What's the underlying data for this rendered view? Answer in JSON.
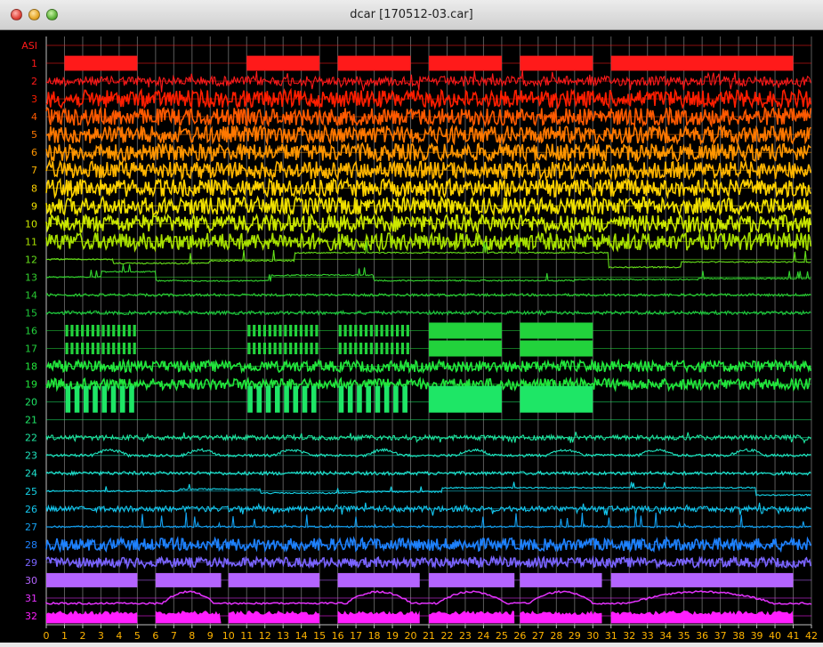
{
  "window": {
    "title": "dcar [170512-03.car]"
  },
  "chart_data": {
    "type": "line",
    "title": "",
    "xlabel": "",
    "ylabel": "",
    "xlim": [
      0,
      42
    ],
    "x_ticks": [
      "0",
      "1",
      "2",
      "3",
      "4",
      "5",
      "6",
      "7",
      "8",
      "9",
      "10",
      "11",
      "12",
      "13",
      "14",
      "15",
      "16",
      "17",
      "18",
      "19",
      "20",
      "21",
      "22",
      "23",
      "24",
      "25",
      "26",
      "27",
      "28",
      "29",
      "30",
      "31",
      "32",
      "33",
      "34",
      "35",
      "36",
      "37",
      "38",
      "39",
      "40",
      "41",
      "42"
    ],
    "grid": true,
    "background": "#000000",
    "grid_color": "#5a5a5a",
    "axis_color": "#c0c0c0",
    "channels": [
      {
        "label": "ASI",
        "color": "#ff1a1a",
        "kind": "none"
      },
      {
        "label": "1",
        "color": "#ff1a1a",
        "kind": "blocks",
        "segments": [
          [
            1,
            5
          ],
          [
            11,
            15
          ],
          [
            16,
            20
          ],
          [
            21,
            25
          ],
          [
            26,
            30
          ],
          [
            31,
            41
          ]
        ]
      },
      {
        "label": "2",
        "color": "#ff1a1a",
        "kind": "noisy",
        "amp": 0.6
      },
      {
        "label": "3",
        "color": "#ff1e00",
        "kind": "dense",
        "amp": 0.7
      },
      {
        "label": "4",
        "color": "#ff5a00",
        "kind": "dense",
        "amp": 0.7
      },
      {
        "label": "5",
        "color": "#ff7800",
        "kind": "dense",
        "amp": 0.7
      },
      {
        "label": "6",
        "color": "#ff9600",
        "kind": "dense",
        "amp": 0.7
      },
      {
        "label": "7",
        "color": "#ffb400",
        "kind": "dense",
        "amp": 0.7
      },
      {
        "label": "8",
        "color": "#ffd200",
        "kind": "dense",
        "amp": 0.7
      },
      {
        "label": "9",
        "color": "#f0e000",
        "kind": "dense",
        "amp": 0.7
      },
      {
        "label": "10",
        "color": "#cce800",
        "kind": "dense",
        "amp": 0.7
      },
      {
        "label": "11",
        "color": "#a8e000",
        "kind": "dense",
        "amp": 0.7
      },
      {
        "label": "12",
        "color": "#66e01a",
        "kind": "step",
        "amp": 0.6
      },
      {
        "label": "13",
        "color": "#33d22e",
        "kind": "step",
        "amp": 0.4
      },
      {
        "label": "14",
        "color": "#28c832",
        "kind": "flat",
        "amp": 0.15
      },
      {
        "label": "15",
        "color": "#1ec83c",
        "kind": "flat",
        "amp": 0.2
      },
      {
        "label": "16",
        "color": "#22d23c",
        "kind": "bursts",
        "segments": [
          [
            1,
            5
          ],
          [
            11,
            15
          ],
          [
            16,
            20
          ]
        ],
        "dense_segments": [
          [
            21,
            25
          ],
          [
            26,
            30
          ]
        ]
      },
      {
        "label": "17",
        "color": "#22d23c",
        "kind": "bursts",
        "segments": [
          [
            1,
            5
          ],
          [
            11,
            15
          ],
          [
            16,
            20
          ]
        ],
        "dense_segments": [
          [
            21,
            25
          ],
          [
            26,
            30
          ]
        ]
      },
      {
        "label": "18",
        "color": "#22e63c",
        "kind": "dense",
        "amp": 0.45
      },
      {
        "label": "19",
        "color": "#22e63c",
        "kind": "dense",
        "amp": 0.45
      },
      {
        "label": "20",
        "color": "#1ee666",
        "kind": "pulses",
        "segments": [
          [
            1,
            5
          ],
          [
            11,
            15
          ],
          [
            16,
            20
          ]
        ],
        "dense_segments": [
          [
            21,
            25
          ],
          [
            26,
            30
          ]
        ]
      },
      {
        "label": "21",
        "color": "#1ee666",
        "kind": "flatline"
      },
      {
        "label": "22",
        "color": "#1ee6a0",
        "kind": "noisy",
        "amp": 0.3
      },
      {
        "label": "23",
        "color": "#1ee6c0",
        "kind": "bumps",
        "amp": 0.5
      },
      {
        "label": "24",
        "color": "#1ee6d2",
        "kind": "flat",
        "amp": 0.2
      },
      {
        "label": "25",
        "color": "#14d2e6",
        "kind": "step",
        "amp": 0.3
      },
      {
        "label": "26",
        "color": "#14c8f0",
        "kind": "noisy",
        "amp": 0.35
      },
      {
        "label": "27",
        "color": "#14a0f0",
        "kind": "spiky",
        "amp": 0.5
      },
      {
        "label": "28",
        "color": "#1e82ff",
        "kind": "dense",
        "amp": 0.5
      },
      {
        "label": "29",
        "color": "#7a64ff",
        "kind": "dense",
        "amp": 0.4
      },
      {
        "label": "30",
        "color": "#b464ff",
        "kind": "plateau",
        "segments": [
          [
            0,
            5
          ],
          [
            6,
            9.6
          ],
          [
            10,
            15
          ],
          [
            16,
            20.5
          ],
          [
            21,
            25.7
          ],
          [
            26,
            30.5
          ],
          [
            31,
            41
          ]
        ]
      },
      {
        "label": "31",
        "color": "#e632ff",
        "kind": "hump",
        "segments": [
          [
            6,
            9.6
          ],
          [
            16,
            20.5
          ],
          [
            21,
            25.7
          ],
          [
            26,
            30.5
          ],
          [
            31,
            41
          ]
        ]
      },
      {
        "label": "32",
        "color": "#ff1eff",
        "kind": "slab",
        "segments": [
          [
            0,
            5
          ],
          [
            6,
            9.6
          ],
          [
            10,
            15
          ],
          [
            16,
            20.5
          ],
          [
            21,
            25.7
          ],
          [
            26,
            30.5
          ],
          [
            31,
            41
          ]
        ]
      }
    ]
  }
}
